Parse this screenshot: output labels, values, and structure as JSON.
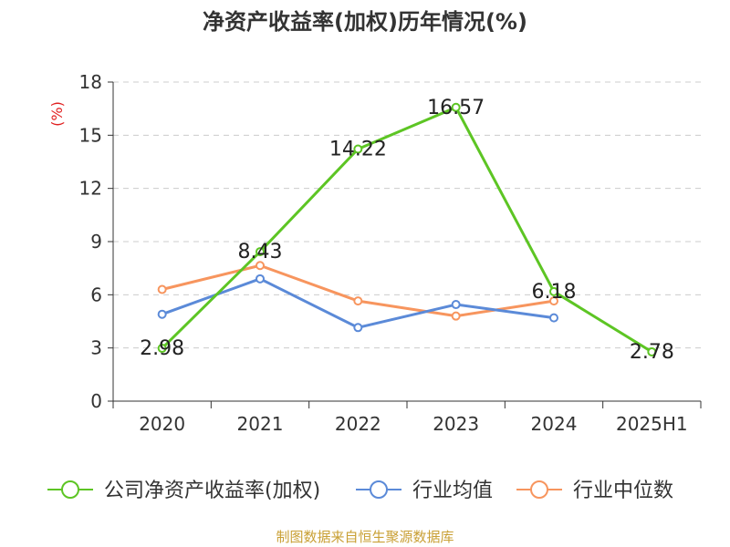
{
  "chart_data": {
    "type": "line",
    "title": "净资产收益率(加权)历年情况(%)",
    "ylabel": "(%)",
    "xlabel": "",
    "categories": [
      "2020",
      "2021",
      "2022",
      "2023",
      "2024",
      "2025H1"
    ],
    "ylim": [
      0,
      18
    ],
    "yticks": [
      "0",
      "3",
      "6",
      "9",
      "12",
      "15",
      "18"
    ],
    "grid": true,
    "legend_position": "bottom",
    "series": [
      {
        "name": "公司净资产收益率(加权)",
        "color": "#5dc524",
        "values": [
          2.98,
          8.43,
          14.22,
          16.57,
          6.18,
          2.78
        ],
        "labels": [
          "2.98",
          "8.43",
          "14.22",
          "16.57",
          "6.18",
          "2.78"
        ]
      },
      {
        "name": "行业均值",
        "color": "#5b8ad8",
        "values": [
          4.9,
          6.9,
          4.15,
          5.45,
          4.7,
          null
        ]
      },
      {
        "name": "行业中位数",
        "color": "#f7955e",
        "values": [
          6.3,
          7.65,
          5.65,
          4.8,
          5.65,
          null
        ]
      }
    ]
  },
  "footer": {
    "source": "制图数据来自恒生聚源数据库"
  }
}
